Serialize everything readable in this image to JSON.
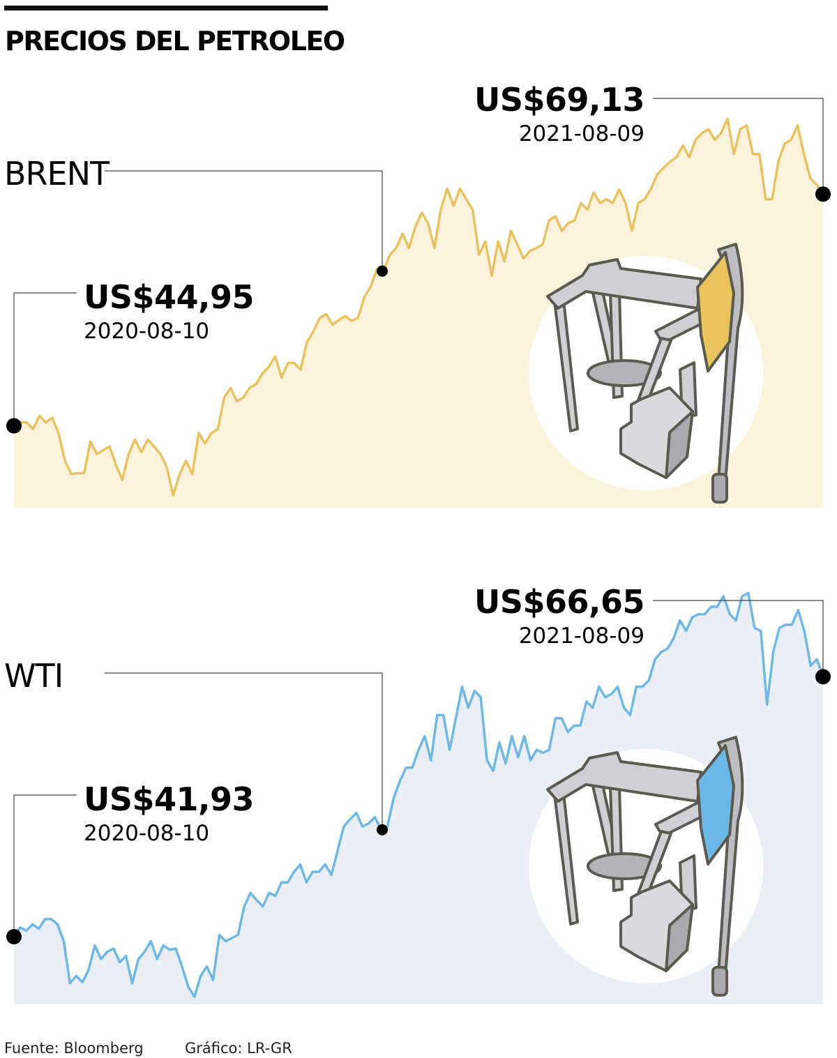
{
  "title": "PRECIOS DEL PETROLEO",
  "footer": {
    "source": "Fuente: Bloomberg",
    "credit": "Gráfico: LR-GR"
  },
  "chart_data": [
    {
      "type": "area",
      "name": "BRENT",
      "line_color": "#e8c261",
      "fill_color": "#fdf3dc",
      "accent_color": "#e9c35b",
      "x_start": "2020-08-10",
      "x_end": "2021-08-09",
      "ylim": [
        36.4,
        80
      ],
      "start": {
        "value": "US$44,95",
        "date": "2020-08-10"
      },
      "end": {
        "value": "US$69,13",
        "date": "2021-08-09"
      },
      "values": [
        44.95,
        45.3,
        45.3,
        44.6,
        46.0,
        45.3,
        45.8,
        44.2,
        41.3,
        39.9,
        40.0,
        40.0,
        43.3,
        42.0,
        42.4,
        42.8,
        40.9,
        39.3,
        42.0,
        43.5,
        42.2,
        43.5,
        42.8,
        42.0,
        40.6,
        37.7,
        39.9,
        41.3,
        39.9,
        44.2,
        43.1,
        44.2,
        44.6,
        47.9,
        48.9,
        47.5,
        47.9,
        48.9,
        49.3,
        50.4,
        51.1,
        52.2,
        50.0,
        51.5,
        51.5,
        50.8,
        53.7,
        54.8,
        56.2,
        56.6,
        55.5,
        56.0,
        56.4,
        55.9,
        56.2,
        58.4,
        59.5,
        61.3,
        61.1,
        62.8,
        63.5,
        65.0,
        63.5,
        65.7,
        67.2,
        66.1,
        63.5,
        67.5,
        69.7,
        67.9,
        69.7,
        68.6,
        67.5,
        62.8,
        64.2,
        60.6,
        64.2,
        62.1,
        65.3,
        63.9,
        62.4,
        63.2,
        63.5,
        63.9,
        66.4,
        66.8,
        65.3,
        66.1,
        66.4,
        68.2,
        67.5,
        69.3,
        68.2,
        68.6,
        68.2,
        69.6,
        68.2,
        65.3,
        68.2,
        68.6,
        69.7,
        71.2,
        71.9,
        72.5,
        73.0,
        74.2,
        73.0,
        74.8,
        75.5,
        75.9,
        74.8,
        75.5,
        77.0,
        73.3,
        75.9,
        76.3,
        73.3,
        73.3,
        68.6,
        68.6,
        72.6,
        74.4,
        74.8,
        76.3,
        73.3,
        70.8,
        70.1,
        69.13
      ]
    },
    {
      "type": "area",
      "name": "WTI",
      "line_color": "#6fb7e4",
      "fill_color": "#e9eef7",
      "accent_color": "#6cb8e6",
      "x_start": "2020-08-10",
      "x_end": "2021-08-09",
      "ylim": [
        35.5,
        80
      ],
      "start": {
        "value": "US$41,93",
        "date": "2020-08-10"
      },
      "end": {
        "value": "US$66,65",
        "date": "2021-08-09"
      },
      "values": [
        41.93,
        42.8,
        42.5,
        43.1,
        42.7,
        43.6,
        43.6,
        43.1,
        41.5,
        37.5,
        38.2,
        37.6,
        38.8,
        41.1,
        39.8,
        40.5,
        40.8,
        39.5,
        40.1,
        37.5,
        39.8,
        40.5,
        41.5,
        39.8,
        41.1,
        40.7,
        40.8,
        39.1,
        37.2,
        36.2,
        38.2,
        39.1,
        37.8,
        42.1,
        41.5,
        41.8,
        42.1,
        44.8,
        46.1,
        45.4,
        44.8,
        46.1,
        45.8,
        47.1,
        47.1,
        48.1,
        48.8,
        47.1,
        48.1,
        48.1,
        48.8,
        47.8,
        50.1,
        52.4,
        53.1,
        53.7,
        52.4,
        52.7,
        53.3,
        52.1,
        52.4,
        55.1,
        56.7,
        58.0,
        58.0,
        59.7,
        61.0,
        58.7,
        63.0,
        63.0,
        59.7,
        62.7,
        65.7,
        63.7,
        65.3,
        64.7,
        58.7,
        57.7,
        60.4,
        58.4,
        61.0,
        59.0,
        61.0,
        58.7,
        59.7,
        59.4,
        59.7,
        62.7,
        62.7,
        61.4,
        62.0,
        62.0,
        64.3,
        63.7,
        65.7,
        64.7,
        65.0,
        65.7,
        63.7,
        63.0,
        65.7,
        65.7,
        66.3,
        68.3,
        69.0,
        69.3,
        70.3,
        72.0,
        71.0,
        72.3,
        72.6,
        72.6,
        73.3,
        73.3,
        74.3,
        72.6,
        72.0,
        74.3,
        74.6,
        71.3,
        71.0,
        64.0,
        69.0,
        71.3,
        71.6,
        71.6,
        73.0,
        71.0,
        67.7,
        68.3,
        66.65
      ]
    }
  ]
}
